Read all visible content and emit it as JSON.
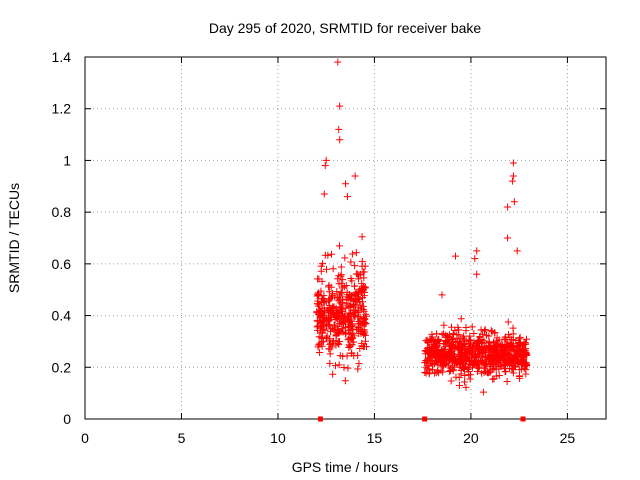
{
  "chart_data": {
    "type": "scatter",
    "title": "Day 295 of 2020, SRMTID for receiver bake",
    "xlabel": "GPS time / hours",
    "ylabel": "SRMTID / TECUs",
    "xlim": [
      0,
      27
    ],
    "ylim": [
      0,
      1.4
    ],
    "x_ticks": [
      0,
      5,
      10,
      15,
      20,
      25
    ],
    "y_ticks": [
      0,
      0.2,
      0.4,
      0.6,
      0.8,
      1,
      1.2,
      1.4
    ],
    "y_tick_labels": [
      "0",
      "0.2",
      "0.4",
      "0.6",
      "0.8",
      "1",
      "1.2",
      "1.4"
    ],
    "grid": true,
    "marker": "+",
    "color": "#ff0000",
    "zero_markers_x": [
      12.2,
      17.6,
      22.7
    ],
    "clusters": [
      {
        "name": "cluster-1",
        "x_range": [
          12.0,
          14.6
        ],
        "base": 0.42,
        "spread": 0.28,
        "min": 0.11,
        "count": 420,
        "peaks": [
          [
            13.1,
            1.38
          ],
          [
            13.2,
            1.21
          ],
          [
            13.15,
            1.12
          ],
          [
            13.2,
            1.08
          ],
          [
            12.5,
            1.0
          ],
          [
            12.45,
            0.98
          ],
          [
            13.5,
            0.91
          ],
          [
            14.0,
            0.94
          ],
          [
            12.4,
            0.87
          ],
          [
            13.6,
            0.86
          ]
        ]
      },
      {
        "name": "cluster-2",
        "x_range": [
          17.6,
          22.9
        ],
        "base": 0.25,
        "spread": 0.12,
        "min": 0.08,
        "count": 760,
        "peaks": [
          [
            22.2,
            0.99
          ],
          [
            22.2,
            0.94
          ],
          [
            22.15,
            0.92
          ],
          [
            22.25,
            0.84
          ],
          [
            21.9,
            0.82
          ],
          [
            21.9,
            0.7
          ],
          [
            20.3,
            0.65
          ],
          [
            20.2,
            0.62
          ],
          [
            19.2,
            0.63
          ],
          [
            22.4,
            0.65
          ],
          [
            18.5,
            0.48
          ],
          [
            20.3,
            0.56
          ]
        ]
      }
    ]
  }
}
